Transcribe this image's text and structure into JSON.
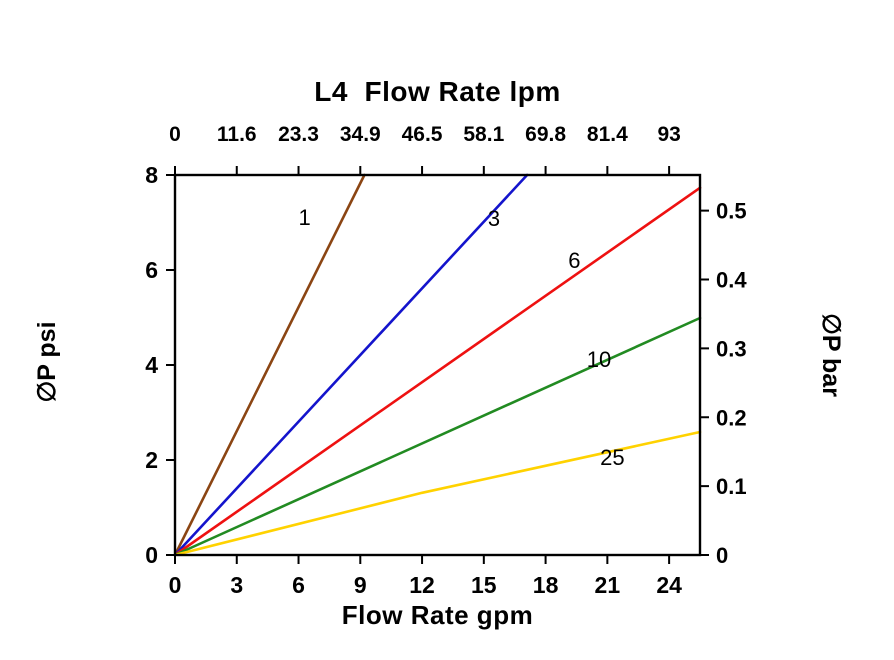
{
  "chart_data": {
    "type": "line",
    "title": "L4  Flow Rate lpm",
    "background": "#ffffff",
    "grid": false,
    "legend": "inline-labels",
    "axes": {
      "top": {
        "unit": "lpm",
        "tick_labels": [
          "0",
          "11.6",
          "23.3",
          "34.9",
          "46.5",
          "58.1",
          "69.8",
          "81.4",
          "93"
        ]
      },
      "bottom": {
        "label": "Flow Rate gpm",
        "unit": "gpm",
        "tick_values": [
          0,
          3,
          6,
          9,
          12,
          15,
          18,
          21,
          24
        ],
        "range": [
          0,
          25.5
        ]
      },
      "left": {
        "label": "∅P psi",
        "unit": "psi",
        "tick_values": [
          0,
          2,
          4,
          6,
          8
        ],
        "range": [
          0,
          8
        ]
      },
      "right": {
        "label": "∅P bar",
        "unit": "bar",
        "tick_labels": [
          "0",
          "0.1",
          "0.2",
          "0.3",
          "0.4",
          "0.5"
        ],
        "tick_values_bar": [
          0,
          0.1,
          0.2,
          0.3,
          0.4,
          0.5
        ],
        "psi_per_bar": 14.5
      }
    },
    "series": [
      {
        "name": "1",
        "label": "1",
        "color": "#8B4513",
        "points": [
          [
            0,
            0
          ],
          [
            9.2,
            8
          ]
        ],
        "label_pos": [
          6.0,
          6.95
        ]
      },
      {
        "name": "3",
        "label": "3",
        "color": "#1414CC",
        "points": [
          [
            0,
            0
          ],
          [
            17.1,
            8
          ]
        ],
        "label_pos": [
          15.2,
          6.93
        ]
      },
      {
        "name": "6",
        "label": "6",
        "color": "#EE1111",
        "points": [
          [
            0,
            0
          ],
          [
            25.5,
            7.73
          ]
        ],
        "label_pos": [
          19.1,
          6.04
        ]
      },
      {
        "name": "10",
        "label": "10",
        "color": "#228B22",
        "points": [
          [
            0,
            0
          ],
          [
            25.5,
            4.99
          ]
        ],
        "label_pos": [
          20.0,
          3.96
        ]
      },
      {
        "name": "25",
        "label": "25",
        "color": "#FFD200",
        "points": [
          [
            0,
            0
          ],
          [
            12,
            1.31
          ],
          [
            25.5,
            2.59
          ]
        ],
        "label_pos": [
          20.65,
          1.89
        ]
      }
    ]
  }
}
